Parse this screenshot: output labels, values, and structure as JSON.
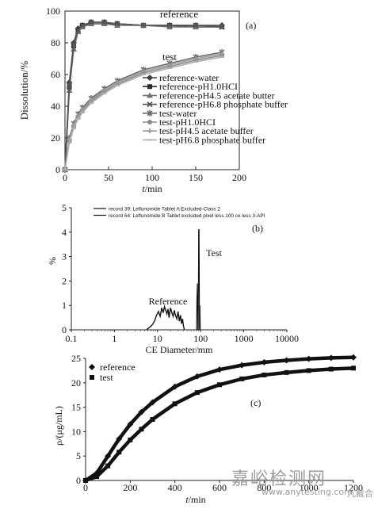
{
  "watermarks": {
    "main": "嘉峪检测网",
    "url": "www.anytesting.com",
    "brand": "九戴合"
  },
  "chart_data": [
    {
      "type": "line",
      "panel": "(a)",
      "xlabel": "t/min",
      "ylabel": "Dissolution/%",
      "xlim": [
        0,
        200
      ],
      "ylim": [
        0,
        100
      ],
      "xticks": [
        "0",
        "50",
        "100",
        "150",
        "200"
      ],
      "yticks": [
        "0",
        "20",
        "40",
        "60",
        "80",
        "100"
      ],
      "annotations": [
        "reference",
        "test"
      ],
      "legend_position": "center",
      "series": [
        {
          "name": "reference-water",
          "color": "#3d3d3d",
          "marker": "diamond",
          "x": [
            0,
            5,
            10,
            15,
            20,
            30,
            45,
            60,
            90,
            120,
            150,
            180
          ],
          "y": [
            0,
            55,
            80,
            89,
            91,
            93,
            93,
            92,
            91,
            91,
            91,
            91
          ]
        },
        {
          "name": "reference-pH1.0HCI",
          "color": "#2a2a2a",
          "marker": "square",
          "x": [
            0,
            5,
            10,
            15,
            20,
            30,
            45,
            60,
            90,
            120,
            150,
            180
          ],
          "y": [
            0,
            52,
            78,
            88,
            91,
            92,
            92,
            92,
            91,
            91,
            90,
            90
          ]
        },
        {
          "name": "reference-pH4.5 acetate butter",
          "color": "#707070",
          "marker": "triangle",
          "x": [
            0,
            5,
            10,
            15,
            20,
            30,
            45,
            60,
            90,
            120,
            150,
            180
          ],
          "y": [
            0,
            50,
            76,
            87,
            90,
            92,
            92,
            91,
            91,
            90,
            90,
            90
          ]
        },
        {
          "name": "reference-pH6.8 phosphate buffer",
          "color": "#555555",
          "marker": "x",
          "x": [
            0,
            5,
            10,
            15,
            20,
            30,
            45,
            60,
            90,
            120,
            150,
            180
          ],
          "y": [
            0,
            53,
            79,
            88,
            91,
            93,
            93,
            92,
            91,
            91,
            91,
            90
          ]
        },
        {
          "name": "test-water",
          "color": "#6a6a6a",
          "marker": "star",
          "x": [
            0,
            5,
            10,
            15,
            20,
            30,
            45,
            60,
            90,
            120,
            150,
            180
          ],
          "y": [
            0,
            20,
            29,
            35,
            39,
            45,
            51,
            56,
            63,
            67,
            71,
            74
          ]
        },
        {
          "name": "test-pH1.0HCI",
          "color": "#8a8a8a",
          "marker": "circle",
          "x": [
            0,
            5,
            10,
            15,
            20,
            30,
            45,
            60,
            90,
            120,
            150,
            180
          ],
          "y": [
            0,
            18,
            27,
            33,
            37,
            43,
            49,
            54,
            61,
            65,
            69,
            72
          ]
        },
        {
          "name": "test-pH4.5 acetate buffer",
          "color": "#9a9a9a",
          "marker": "plus",
          "x": [
            0,
            5,
            10,
            15,
            20,
            30,
            45,
            60,
            90,
            120,
            150,
            180
          ],
          "y": [
            0,
            19,
            28,
            34,
            38,
            44,
            50,
            55,
            62,
            66,
            70,
            73
          ]
        },
        {
          "name": "test-pH6.8 phosphate buffer",
          "color": "#b0b0b0",
          "marker": "dash",
          "x": [
            0,
            5,
            10,
            15,
            20,
            30,
            45,
            60,
            90,
            120,
            150,
            180
          ],
          "y": [
            0,
            17,
            26,
            32,
            36,
            42,
            48,
            53,
            60,
            64,
            68,
            71
          ]
        }
      ]
    },
    {
      "type": "line",
      "panel": "(b)",
      "xscale": "log",
      "xlabel": "CE Diameter/mm",
      "ylabel": "%",
      "xlim": [
        0.1,
        10000
      ],
      "ylim": [
        0,
        5
      ],
      "xticks": [
        "0.1",
        "1",
        "10",
        "100",
        "1000",
        "10000"
      ],
      "yticks": [
        "0",
        "1",
        "2",
        "3",
        "4",
        "5"
      ],
      "annotations": [
        "Reference",
        "Test"
      ],
      "legend_position": "top-center",
      "series": [
        {
          "name": "record 39: Leflunomide Tablet A Excluded-Class 2",
          "color": "#111111",
          "x": [
            5.5,
            6.5,
            7.5,
            8.5,
            9.5,
            10.5,
            11.5,
            12.5,
            13.5,
            14.5,
            15.5,
            16.5,
            17.5,
            18.5,
            20,
            21.5,
            23,
            24.5,
            26,
            28,
            30,
            32,
            34,
            36,
            38,
            40,
            42
          ],
          "y": [
            0,
            0.1,
            0.2,
            0.35,
            0.6,
            0.75,
            0.55,
            0.9,
            0.7,
            0.95,
            0.8,
            0.65,
            0.85,
            0.5,
            0.9,
            0.7,
            0.55,
            0.8,
            0.6,
            0.45,
            0.75,
            0.35,
            0.6,
            0.25,
            0.45,
            0.15,
            0
          ]
        },
        {
          "name": "record 64: Leflunomide B Tablet excluded pixel less 100 ce less 3-API",
          "color": "#111111",
          "x": [
            80,
            82,
            84,
            86,
            88,
            90,
            92,
            94,
            96,
            98
          ],
          "y": [
            0,
            1.3,
            1.9,
            0,
            0,
            4.1,
            4.1,
            0,
            1.0,
            0
          ]
        }
      ]
    },
    {
      "type": "line",
      "panel": "(c)",
      "xlabel": "t/min",
      "ylabel": "ρ/(μg/mL)",
      "xlim": [
        0,
        1200
      ],
      "ylim": [
        0,
        25
      ],
      "xticks": [
        "0",
        "200",
        "400",
        "600",
        "800",
        "1000",
        "1200"
      ],
      "yticks": [
        "0",
        "5",
        "10",
        "15",
        "20",
        "25"
      ],
      "legend_position": "top-left",
      "series": [
        {
          "name": "reference",
          "color": "#111111",
          "marker": "diamond",
          "x": [
            0,
            50,
            100,
            150,
            200,
            250,
            300,
            400,
            500,
            600,
            700,
            800,
            900,
            1000,
            1100,
            1200
          ],
          "y": [
            0,
            1.5,
            5,
            8.5,
            11.5,
            14,
            16,
            19.2,
            21.3,
            22.7,
            23.6,
            24.2,
            24.6,
            24.9,
            25.1,
            25.2
          ]
        },
        {
          "name": "test",
          "color": "#111111",
          "marker": "square",
          "x": [
            0,
            50,
            100,
            150,
            200,
            250,
            300,
            400,
            500,
            600,
            700,
            800,
            900,
            1000,
            1100,
            1200
          ],
          "y": [
            0,
            0.8,
            3,
            5.8,
            8.3,
            10.5,
            12.5,
            15.7,
            18,
            19.6,
            20.8,
            21.6,
            22.1,
            22.5,
            22.8,
            23
          ]
        }
      ]
    }
  ]
}
